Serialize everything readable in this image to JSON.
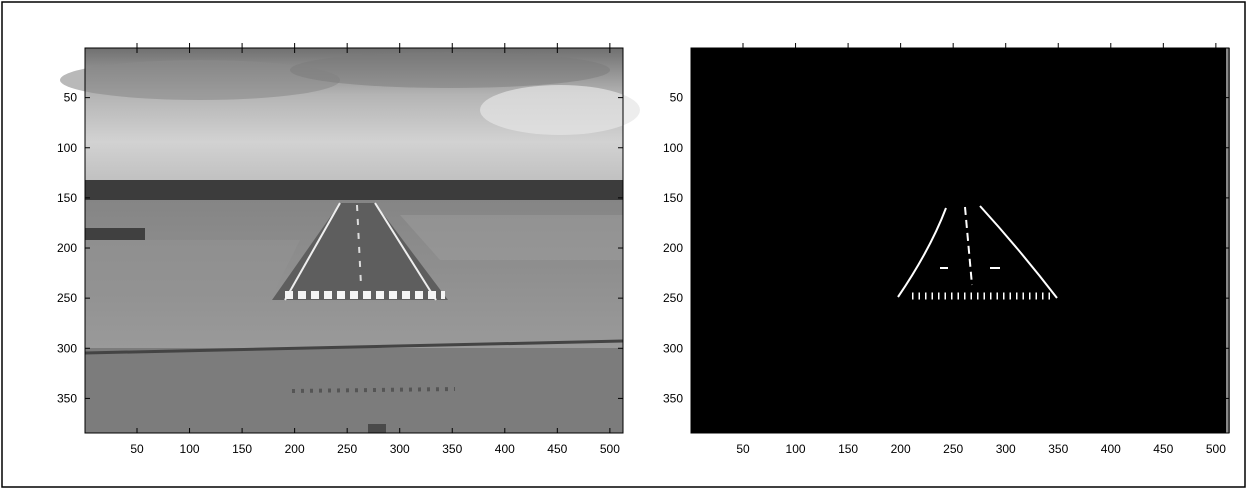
{
  "chart_data": [
    {
      "type": "image",
      "xlim": [
        0.5,
        512.5
      ],
      "ylim": [
        0.5,
        384.5
      ],
      "yreverse": true,
      "xticks": [
        50,
        100,
        150,
        200,
        250,
        300,
        350,
        400,
        450,
        500
      ],
      "yticks": [
        50,
        100,
        150,
        200,
        250,
        300,
        350
      ]
    },
    {
      "type": "image",
      "xlim": [
        0.5,
        512.5
      ],
      "ylim": [
        0.5,
        384.5
      ],
      "yreverse": true,
      "xticks": [
        50,
        100,
        150,
        200,
        250,
        300,
        350,
        400,
        450,
        500
      ],
      "yticks": [
        50,
        100,
        150,
        200,
        250,
        300,
        350
      ]
    }
  ]
}
